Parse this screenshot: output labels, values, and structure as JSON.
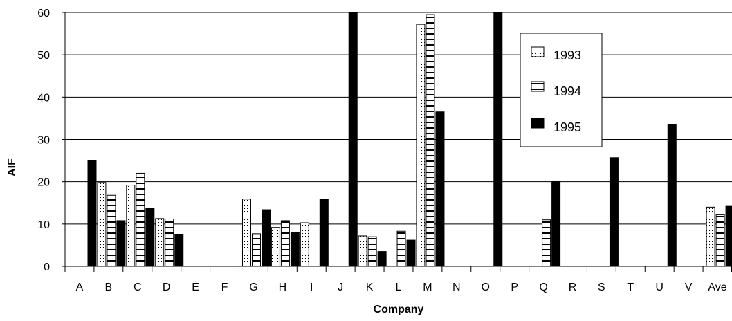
{
  "chart_data": {
    "type": "bar",
    "title": "",
    "xlabel": "Company",
    "ylabel": "AIF",
    "ylim": [
      0,
      60
    ],
    "yticks": [
      0,
      10,
      20,
      30,
      40,
      50,
      60
    ],
    "grid": "horizontal",
    "legend_position": "right",
    "categories": [
      "A",
      "B",
      "C",
      "D",
      "E",
      "F",
      "G",
      "H",
      "I",
      "J",
      "K",
      "L",
      "M",
      "N",
      "O",
      "P",
      "Q",
      "R",
      "S",
      "T",
      "U",
      "V",
      "Ave"
    ],
    "series": [
      {
        "name": "1993",
        "pattern": "dotted",
        "values": [
          null,
          19.8,
          19.2,
          11.3,
          null,
          null,
          15.9,
          9.2,
          10.3,
          null,
          7.2,
          null,
          57.2,
          null,
          null,
          null,
          null,
          null,
          null,
          null,
          null,
          null,
          14.0
        ]
      },
      {
        "name": "1994",
        "pattern": "horizontal-bands",
        "values": [
          null,
          16.8,
          22.0,
          11.2,
          null,
          null,
          7.7,
          10.8,
          null,
          null,
          7.0,
          8.3,
          59.5,
          null,
          null,
          null,
          11.0,
          null,
          null,
          null,
          null,
          null,
          12.2
        ]
      },
      {
        "name": "1995",
        "pattern": "solid",
        "values": [
          25.0,
          10.8,
          13.7,
          7.6,
          null,
          null,
          13.4,
          8.1,
          15.9,
          60,
          3.5,
          6.2,
          36.5,
          null,
          60,
          null,
          20.2,
          null,
          25.7,
          null,
          33.6,
          null,
          14.2
        ]
      }
    ],
    "colors": {
      "bar": "#000000",
      "fill_light": "#ffffff",
      "grid": "#000000"
    }
  }
}
